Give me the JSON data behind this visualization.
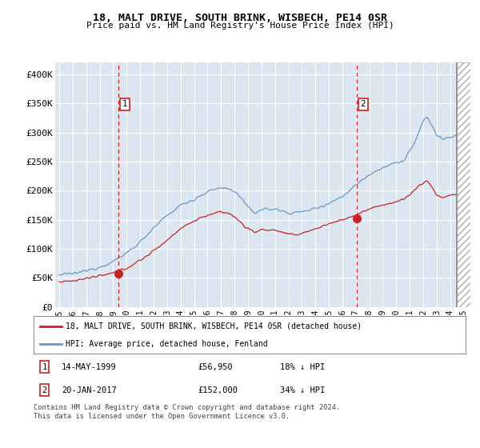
{
  "title": "18, MALT DRIVE, SOUTH BRINK, WISBECH, PE14 0SR",
  "subtitle": "Price paid vs. HM Land Registry's House Price Index (HPI)",
  "background_color": "#dce6f1",
  "plot_bg_color": "#dce6f1",
  "hpi_color": "#6699cc",
  "price_color": "#cc2222",
  "marker_color": "#cc2222",
  "vline_color": "#cc2222",
  "point1_x": 1999.37,
  "point1_y": 56950,
  "point2_x": 2017.05,
  "point2_y": 152000,
  "legend_line1": "18, MALT DRIVE, SOUTH BRINK, WISBECH, PE14 0SR (detached house)",
  "legend_line2": "HPI: Average price, detached house, Fenland",
  "note1_label": "1",
  "note1_date": "14-MAY-1999",
  "note1_price": "£56,950",
  "note1_hpi": "18% ↓ HPI",
  "note2_label": "2",
  "note2_date": "20-JAN-2017",
  "note2_price": "£152,000",
  "note2_hpi": "34% ↓ HPI",
  "footer": "Contains HM Land Registry data © Crown copyright and database right 2024.\nThis data is licensed under the Open Government Licence v3.0.",
  "ylim": [
    0,
    420000
  ],
  "xlim_start": 1994.7,
  "xlim_end": 2025.5,
  "hatch_start": 2024.5,
  "yticks": [
    0,
    50000,
    100000,
    150000,
    200000,
    250000,
    300000,
    350000,
    400000
  ],
  "ytick_labels": [
    "£0",
    "£50K",
    "£100K",
    "£150K",
    "£200K",
    "£250K",
    "£300K",
    "£350K",
    "£400K"
  ]
}
